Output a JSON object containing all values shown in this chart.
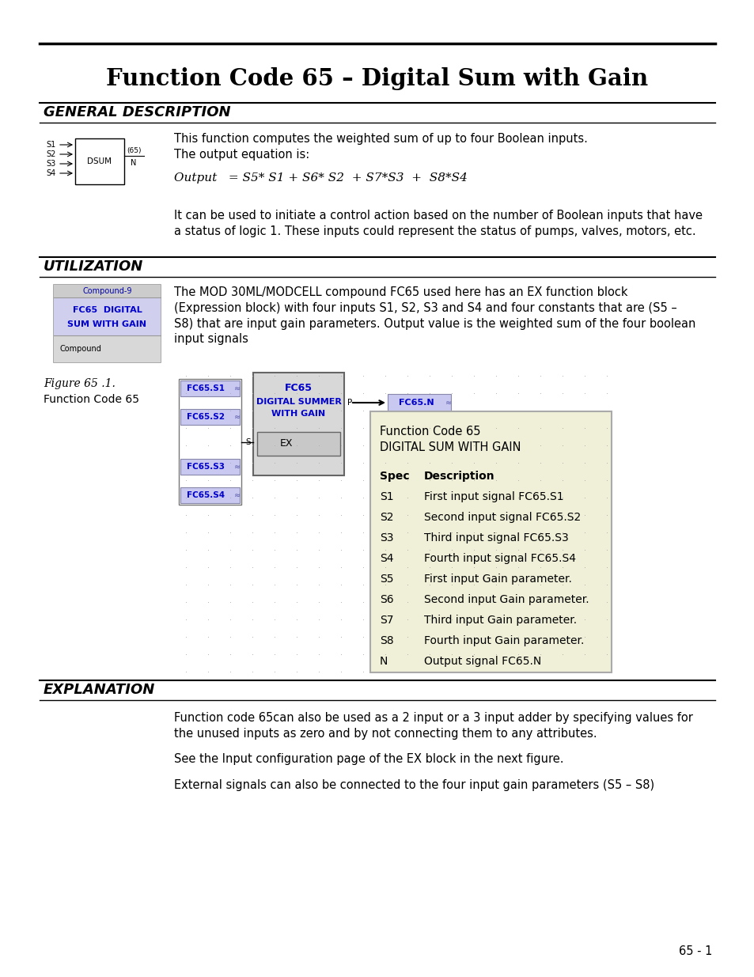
{
  "title": "Function Code 65 – Digital Sum with Gain",
  "bg_color": "#ffffff",
  "section1_heading": "GENERAL DESCRIPTION",
  "section1_text1": "This function computes the weighted sum of up to four Boolean inputs.\nThe output equation is:",
  "section1_equation": "Output   = S5* S1 + S6* S2  + S7*S3  +  S8*S4",
  "section1_text2": "It can be used to initiate a control action based on the number of Boolean inputs that have\na status of logic 1. These inputs could represent the status of pumps, valves, motors, etc.",
  "section2_heading": "UTILIZATION",
  "section2_text": "The MOD 30ML/MODCELL compound FC65 used here has an EX function block\n(Expression block) with four inputs S1, S2, S3 and S4 and four constants that are (S5 –\nS8) that are input gain parameters. Output value is the weighted sum of the four boolean\ninput signals",
  "figure_caption_italic": "Figure 65 .1.",
  "figure_caption_normal": "Function Code 65",
  "section3_heading": "EXPLANATION",
  "section3_text1": "Function code 65can also be used as a 2 input or a 3 input adder by specifying values for\nthe unused inputs as zero and by not connecting them to any attributes.",
  "section3_text2": "See the Input configuration page of the EX block in the next figure.",
  "section3_text3": "External signals can also be connected to the four input gain parameters (S5 – S8)",
  "page_number": "65 - 1",
  "table_bg": "#f0f0d8",
  "table_rows": [
    [
      "Spec",
      "Description"
    ],
    [
      "S1",
      "First input signal FC65.S1"
    ],
    [
      "S2",
      "Second input signal FC65.S2"
    ],
    [
      "S3",
      "Third input signal FC65.S3"
    ],
    [
      "S4",
      "Fourth input signal FC65.S4"
    ],
    [
      "S5",
      "First input Gain parameter."
    ],
    [
      "S6",
      "Second input Gain parameter."
    ],
    [
      "S7",
      "Third input Gain parameter."
    ],
    [
      "S8",
      "Fourth input Gain parameter."
    ],
    [
      "N",
      "Output signal FC65.N"
    ]
  ],
  "input_labels": [
    "FC65.S1",
    "FC65.S2",
    "FC65.S3",
    "FC65.S4"
  ],
  "dot_color": "#aaaaaa",
  "block_blue_text": "#0000cc",
  "block_blue_bg": "#c8c8f0"
}
